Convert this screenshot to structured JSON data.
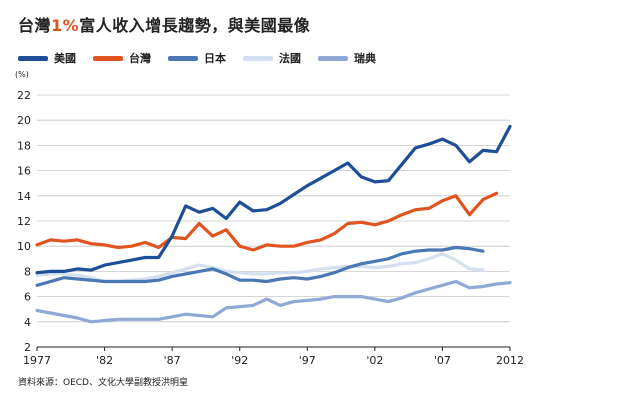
{
  "title": {
    "before": "台灣",
    "highlight": "1%",
    "after": "富人收入增長趨勢，與美國最像"
  },
  "source_note": "資料來源：OECD、文化大學副教授洪明皇",
  "colors": {
    "accent": "#e0551f"
  },
  "chart_data": {
    "type": "line",
    "title": "台灣1%富人收入增長趨勢，與美國最像",
    "xlabel": "",
    "ylabel": "(%)",
    "xlim": [
      1977,
      2012
    ],
    "ylim": [
      2,
      22
    ],
    "grid": true,
    "legend_position": "top-left",
    "x_tick_values": [
      1977,
      1982,
      1987,
      1992,
      1997,
      2002,
      2007,
      2012
    ],
    "x_tick_labels": [
      "1977",
      "'82",
      "'87",
      "'92",
      "'97",
      "'02",
      "'07",
      "2012"
    ],
    "y_ticks": [
      2,
      4,
      6,
      8,
      10,
      12,
      14,
      16,
      18,
      20,
      22
    ],
    "y_unit_label": "(%)",
    "series": [
      {
        "name": "美國",
        "color": "#1d4f97",
        "x": [
          1977,
          1978,
          1979,
          1980,
          1981,
          1982,
          1983,
          1984,
          1985,
          1986,
          1987,
          1988,
          1989,
          1990,
          1991,
          1992,
          1993,
          1994,
          1995,
          1996,
          1997,
          1998,
          1999,
          2000,
          2001,
          2002,
          2003,
          2004,
          2005,
          2006,
          2007,
          2008,
          2009,
          2010,
          2011,
          2012
        ],
        "values": [
          7.9,
          8.0,
          8.0,
          8.2,
          8.1,
          8.5,
          8.7,
          8.9,
          9.1,
          9.1,
          10.8,
          13.2,
          12.7,
          13.0,
          12.2,
          13.5,
          12.8,
          12.9,
          13.4,
          14.1,
          14.8,
          15.4,
          16.0,
          16.6,
          15.5,
          15.1,
          15.2,
          16.5,
          17.8,
          18.1,
          18.5,
          18.0,
          16.7,
          17.6,
          17.5,
          19.5
        ]
      },
      {
        "name": "台灣",
        "color": "#e0551f",
        "x": [
          1977,
          1978,
          1979,
          1980,
          1981,
          1982,
          1983,
          1984,
          1985,
          1986,
          1987,
          1988,
          1989,
          1990,
          1991,
          1992,
          1993,
          1994,
          1995,
          1996,
          1997,
          1998,
          1999,
          2000,
          2001,
          2002,
          2003,
          2004,
          2005,
          2006,
          2007,
          2008,
          2009,
          2010,
          2011
        ],
        "values": [
          10.1,
          10.5,
          10.4,
          10.5,
          10.2,
          10.1,
          9.9,
          10.0,
          10.3,
          9.9,
          10.7,
          10.6,
          11.8,
          10.8,
          11.3,
          10.0,
          9.7,
          10.1,
          10.0,
          10.0,
          10.3,
          10.5,
          11.0,
          11.8,
          11.9,
          11.7,
          12.0,
          12.5,
          12.9,
          13.0,
          13.6,
          14.0,
          12.5,
          13.7,
          14.2
        ]
      },
      {
        "name": "日本",
        "color": "#4a78b5",
        "x": [
          1977,
          1978,
          1979,
          1980,
          1981,
          1982,
          1983,
          1984,
          1985,
          1986,
          1987,
          1988,
          1989,
          1990,
          1991,
          1992,
          1993,
          1994,
          1995,
          1996,
          1997,
          1998,
          1999,
          2000,
          2001,
          2002,
          2003,
          2004,
          2005,
          2006,
          2007,
          2008,
          2009,
          2010
        ],
        "values": [
          6.9,
          7.2,
          7.5,
          7.4,
          7.3,
          7.2,
          7.2,
          7.2,
          7.2,
          7.3,
          7.6,
          7.8,
          8.0,
          8.2,
          7.8,
          7.3,
          7.3,
          7.2,
          7.4,
          7.5,
          7.4,
          7.6,
          7.9,
          8.3,
          8.6,
          8.8,
          9.0,
          9.4,
          9.6,
          9.7,
          9.7,
          9.9,
          9.8,
          9.6
        ]
      },
      {
        "name": "法國",
        "color": "#d4dff0",
        "x": [
          1977,
          1978,
          1979,
          1980,
          1981,
          1982,
          1983,
          1984,
          1985,
          1986,
          1987,
          1988,
          1989,
          1990,
          1991,
          1992,
          1993,
          1994,
          1995,
          1996,
          1997,
          1998,
          1999,
          2000,
          2001,
          2002,
          2003,
          2004,
          2005,
          2006,
          2007,
          2008,
          2009,
          2010
        ],
        "values": [
          7.7,
          7.8,
          7.8,
          7.7,
          7.5,
          7.2,
          7.2,
          7.3,
          7.4,
          7.6,
          7.9,
          8.2,
          8.5,
          8.3,
          8.0,
          7.9,
          7.8,
          7.8,
          7.9,
          7.9,
          8.0,
          8.2,
          8.3,
          8.4,
          8.4,
          8.3,
          8.4,
          8.6,
          8.7,
          9.0,
          9.4,
          8.9,
          8.2,
          8.1
        ]
      },
      {
        "name": "瑞典",
        "color": "#8fa8d6",
        "x": [
          1977,
          1978,
          1979,
          1980,
          1981,
          1982,
          1983,
          1984,
          1985,
          1986,
          1987,
          1988,
          1989,
          1990,
          1991,
          1992,
          1993,
          1994,
          1995,
          1996,
          1997,
          1998,
          1999,
          2000,
          2001,
          2002,
          2003,
          2004,
          2005,
          2006,
          2007,
          2008,
          2009,
          2010,
          2011,
          2012
        ],
        "values": [
          4.9,
          4.7,
          4.5,
          4.3,
          4.0,
          4.1,
          4.2,
          4.2,
          4.2,
          4.2,
          4.4,
          4.6,
          4.5,
          4.4,
          5.1,
          5.2,
          5.3,
          5.8,
          5.3,
          5.6,
          5.7,
          5.8,
          6.0,
          6.0,
          6.0,
          5.8,
          5.6,
          5.9,
          6.3,
          6.6,
          6.9,
          7.2,
          6.7,
          6.8,
          7.0,
          7.1
        ]
      }
    ]
  }
}
